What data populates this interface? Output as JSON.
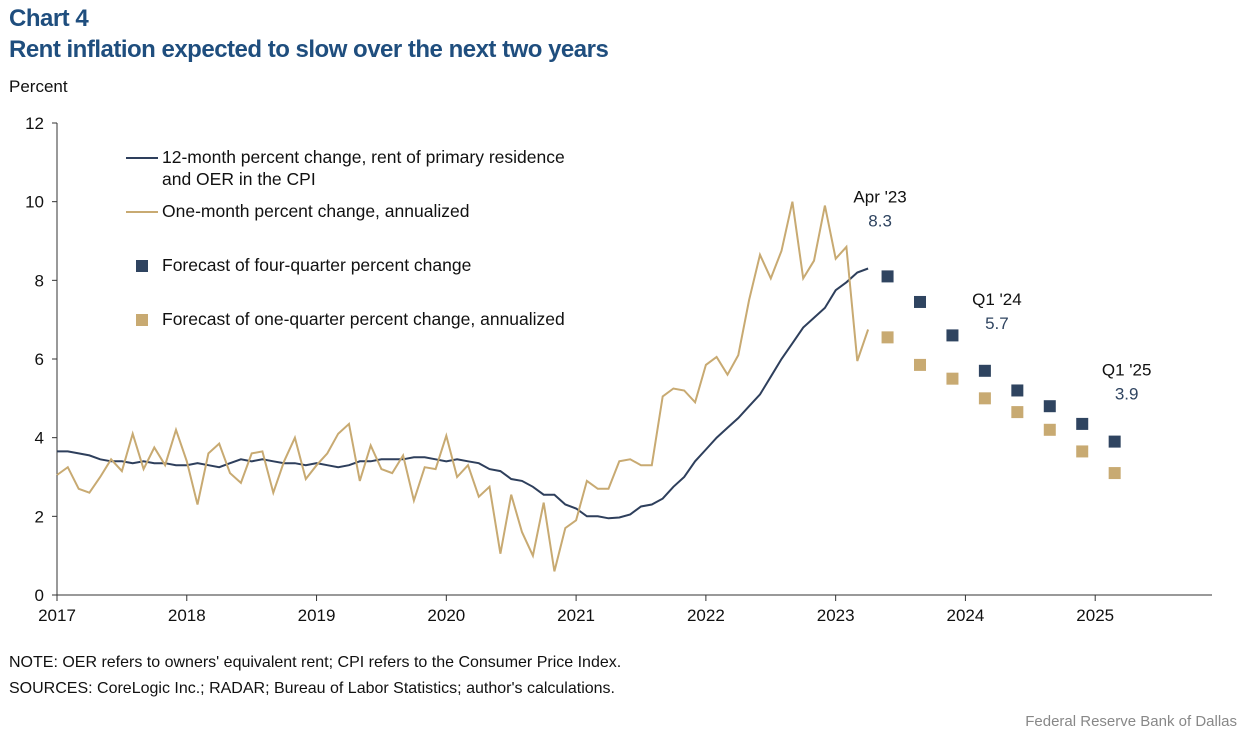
{
  "chart_data": {
    "type": "line",
    "title": "Chart 4",
    "subtitle": "Rent inflation expected to slow over the next two years",
    "y_label": "Percent",
    "xlim": [
      2017,
      2025.9
    ],
    "xticks": [
      2017,
      2018,
      2019,
      2020,
      2021,
      2022,
      2023,
      2024,
      2025
    ],
    "ylim": [
      0,
      12
    ],
    "yticks": [
      0,
      2,
      4,
      6,
      8,
      10,
      12
    ],
    "series": [
      {
        "name": "12-month percent change, rent of primary residence\nand OER in the CPI",
        "color": "#2e3f5c",
        "marker": "line",
        "x": [
          2017,
          2017.083,
          2017.167,
          2017.25,
          2017.333,
          2017.417,
          2017.5,
          2017.583,
          2017.667,
          2017.75,
          2017.833,
          2017.917,
          2018,
          2018.083,
          2018.167,
          2018.25,
          2018.333,
          2018.417,
          2018.5,
          2018.583,
          2018.667,
          2018.75,
          2018.833,
          2018.917,
          2019,
          2019.083,
          2019.167,
          2019.25,
          2019.333,
          2019.417,
          2019.5,
          2019.583,
          2019.667,
          2019.75,
          2019.833,
          2019.917,
          2020,
          2020.083,
          2020.167,
          2020.25,
          2020.333,
          2020.417,
          2020.5,
          2020.583,
          2020.667,
          2020.75,
          2020.833,
          2020.917,
          2021,
          2021.083,
          2021.167,
          2021.25,
          2021.333,
          2021.417,
          2021.5,
          2021.583,
          2021.667,
          2021.75,
          2021.833,
          2021.917,
          2022,
          2022.083,
          2022.167,
          2022.25,
          2022.333,
          2022.417,
          2022.5,
          2022.583,
          2022.667,
          2022.75,
          2022.833,
          2022.917,
          2023,
          2023.083,
          2023.167,
          2023.25
        ],
        "values": [
          3.65,
          3.65,
          3.6,
          3.55,
          3.45,
          3.4,
          3.4,
          3.35,
          3.4,
          3.35,
          3.35,
          3.3,
          3.3,
          3.35,
          3.3,
          3.25,
          3.35,
          3.45,
          3.4,
          3.45,
          3.4,
          3.35,
          3.35,
          3.3,
          3.35,
          3.3,
          3.25,
          3.3,
          3.4,
          3.4,
          3.45,
          3.45,
          3.45,
          3.5,
          3.5,
          3.45,
          3.4,
          3.45,
          3.4,
          3.35,
          3.2,
          3.15,
          2.95,
          2.9,
          2.75,
          2.55,
          2.55,
          2.3,
          2.2,
          2.0,
          2.0,
          1.95,
          1.97,
          2.05,
          2.25,
          2.3,
          2.45,
          2.75,
          3.0,
          3.4,
          3.7,
          4.0,
          4.25,
          4.5,
          4.8,
          5.1,
          5.55,
          6.0,
          6.4,
          6.8,
          7.05,
          7.3,
          7.75,
          7.95,
          8.2,
          8.3
        ]
      },
      {
        "name": "One-month percent change, annualized",
        "color": "#c8aa72",
        "marker": "line",
        "x": [
          2017,
          2017.083,
          2017.167,
          2017.25,
          2017.333,
          2017.417,
          2017.5,
          2017.583,
          2017.667,
          2017.75,
          2017.833,
          2017.917,
          2018,
          2018.083,
          2018.167,
          2018.25,
          2018.333,
          2018.417,
          2018.5,
          2018.583,
          2018.667,
          2018.75,
          2018.833,
          2018.917,
          2019,
          2019.083,
          2019.167,
          2019.25,
          2019.333,
          2019.417,
          2019.5,
          2019.583,
          2019.667,
          2019.75,
          2019.833,
          2019.917,
          2020,
          2020.083,
          2020.167,
          2020.25,
          2020.333,
          2020.417,
          2020.5,
          2020.583,
          2020.667,
          2020.75,
          2020.833,
          2020.917,
          2021,
          2021.083,
          2021.167,
          2021.25,
          2021.333,
          2021.417,
          2021.5,
          2021.583,
          2021.667,
          2021.75,
          2021.833,
          2021.917,
          2022,
          2022.083,
          2022.167,
          2022.25,
          2022.333,
          2022.417,
          2022.5,
          2022.583,
          2022.667,
          2022.75,
          2022.833,
          2022.917,
          2023,
          2023.083,
          2023.167,
          2023.25
        ],
        "values": [
          3.05,
          3.25,
          2.7,
          2.6,
          3.0,
          3.45,
          3.15,
          4.1,
          3.2,
          3.75,
          3.3,
          4.2,
          3.4,
          2.3,
          3.6,
          3.85,
          3.1,
          2.85,
          3.6,
          3.65,
          2.6,
          3.4,
          4.0,
          2.95,
          3.3,
          3.6,
          4.1,
          4.35,
          2.9,
          3.8,
          3.2,
          3.1,
          3.55,
          2.4,
          3.25,
          3.2,
          4.05,
          3.0,
          3.3,
          2.5,
          2.75,
          1.05,
          2.55,
          1.6,
          1.0,
          2.35,
          0.6,
          1.7,
          1.9,
          2.9,
          2.7,
          2.7,
          3.4,
          3.45,
          3.3,
          3.3,
          5.05,
          5.25,
          5.2,
          4.9,
          5.85,
          6.05,
          5.6,
          6.1,
          7.5,
          8.65,
          8.05,
          8.75,
          10.0,
          8.05,
          8.5,
          9.9,
          8.55,
          8.85,
          5.95,
          6.75
        ]
      },
      {
        "name": "Forecast of four-quarter percent change",
        "color": "#2f4460",
        "marker": "square",
        "x": [
          2023.4,
          2023.65,
          2023.9,
          2024.15,
          2024.4,
          2024.65,
          2024.9,
          2025.15
        ],
        "values": [
          8.1,
          7.45,
          6.6,
          5.7,
          5.2,
          4.8,
          4.35,
          3.9
        ]
      },
      {
        "name": "Forecast of one-quarter percent change, annualized",
        "color": "#c8aa72",
        "marker": "square",
        "x": [
          2023.4,
          2023.65,
          2023.9,
          2024.15,
          2024.4,
          2024.65,
          2024.9,
          2025.15
        ],
        "values": [
          6.55,
          5.85,
          5.5,
          5.0,
          4.65,
          4.2,
          3.65,
          3.1
        ]
      }
    ],
    "annotations": [
      {
        "text": "Apr '23",
        "x": 2023.25,
        "value": 8.3
      },
      {
        "text": "Q1 '24",
        "x": 2024.15,
        "value": 5.7
      },
      {
        "text": "Q1 '25",
        "x": 2025.15,
        "value": 3.9
      }
    ],
    "note": "NOTE: OER refers to owners' equivalent rent; CPI refers to the Consumer Price Index.",
    "source": "SOURCES: CoreLogic Inc.; RADAR;  Bureau of Labor Statistics; author's calculations.",
    "credit": "Federal Reserve  Bank of Dallas"
  }
}
